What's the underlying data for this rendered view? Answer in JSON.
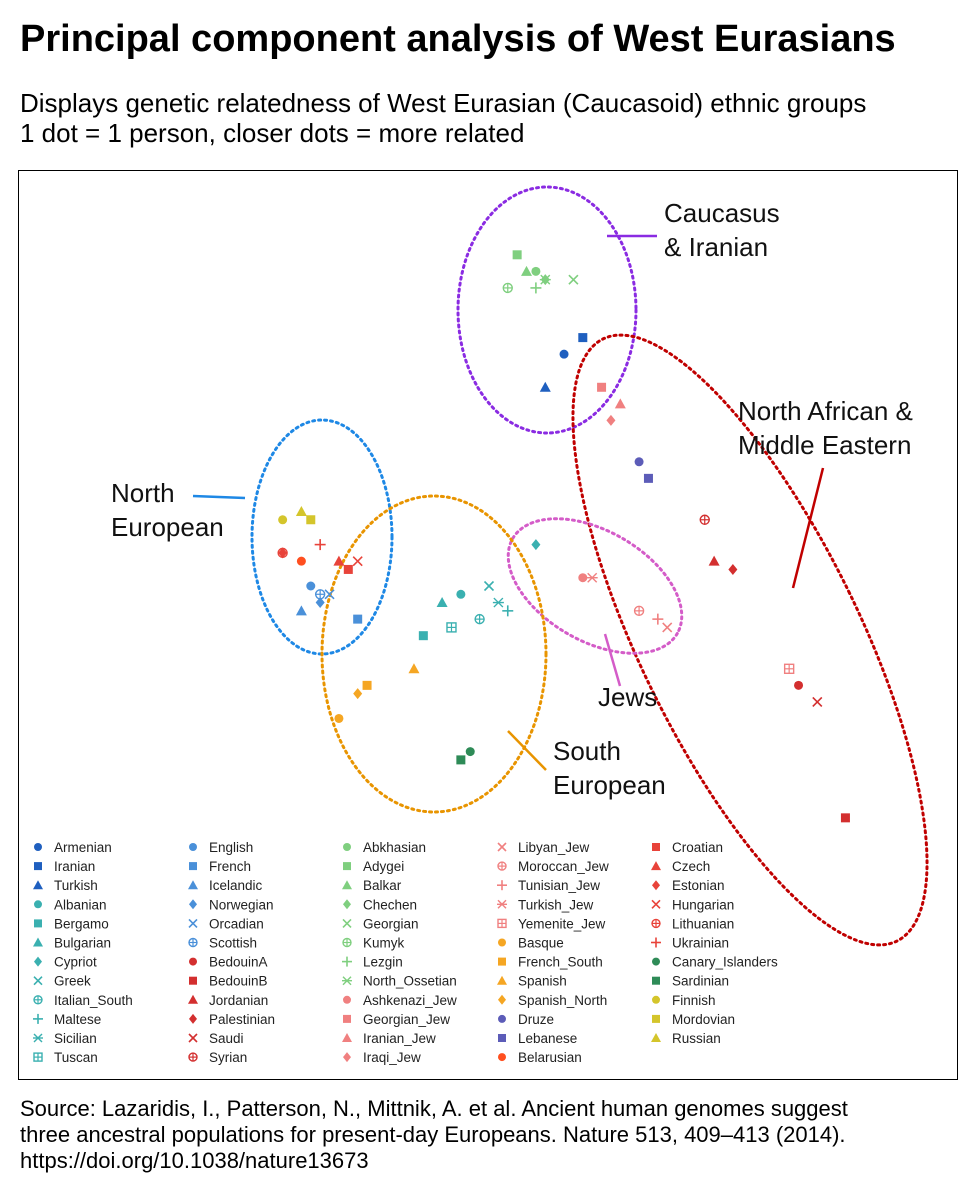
{
  "title": "Principal component analysis of West Eurasians",
  "subtitle_lines": [
    "Displays genetic relatedness of West Eurasian (Caucasoid) ethnic groups",
    "1 dot = 1 person, closer dots = more related"
  ],
  "source_lines": [
    "Source: Lazaridis, I., Patterson, N., Mittnik, A. et al. Ancient human genomes suggest",
    "three ancestral populations for present-day Europeans. Nature 513, 409–413 (2014).",
    "https://doi.org/10.1038/nature13673"
  ],
  "chart_data": {
    "type": "scatter",
    "title": "Principal component analysis of West Eurasians",
    "xlabel": "",
    "ylabel": "",
    "grid": false,
    "legend_position": "bottom",
    "cluster_annotations": [
      {
        "lines": [
          "Caucasus",
          "& Iranian"
        ],
        "color": "#8a2be2"
      },
      {
        "lines": [
          "North African &",
          "Middle Eastern"
        ],
        "color": "#c00000"
      },
      {
        "lines": [
          "North",
          "European"
        ],
        "color": "#1e88e5"
      },
      {
        "lines": [
          "Jews"
        ],
        "color": "#d45cc8"
      },
      {
        "lines": [
          "South",
          "European"
        ],
        "color": "#e89400"
      }
    ],
    "series": [
      {
        "name": "Armenian",
        "color": "#1f5fbf",
        "marker": "circle",
        "x": 0.58,
        "y": 0.78
      },
      {
        "name": "Iranian",
        "color": "#1f5fbf",
        "marker": "square",
        "x": 0.6,
        "y": 0.8
      },
      {
        "name": "Turkish",
        "color": "#1f5fbf",
        "marker": "triangle",
        "x": 0.56,
        "y": 0.74
      },
      {
        "name": "Albanian",
        "color": "#3ab0b0",
        "marker": "circle",
        "x": 0.47,
        "y": 0.49
      },
      {
        "name": "Bergamo",
        "color": "#3ab0b0",
        "marker": "square",
        "x": 0.43,
        "y": 0.44
      },
      {
        "name": "Bulgarian",
        "color": "#3ab0b0",
        "marker": "triangle",
        "x": 0.45,
        "y": 0.48
      },
      {
        "name": "Cypriot",
        "color": "#3ab0b0",
        "marker": "diamond",
        "x": 0.55,
        "y": 0.55
      },
      {
        "name": "Greek",
        "color": "#3ab0b0",
        "marker": "x",
        "x": 0.5,
        "y": 0.5
      },
      {
        "name": "Italian_South",
        "color": "#3ab0b0",
        "marker": "oplus",
        "x": 0.49,
        "y": 0.46
      },
      {
        "name": "Maltese",
        "color": "#3ab0b0",
        "marker": "plus",
        "x": 0.52,
        "y": 0.47
      },
      {
        "name": "Sicilian",
        "color": "#3ab0b0",
        "marker": "asterisk",
        "x": 0.51,
        "y": 0.48
      },
      {
        "name": "Tuscan",
        "color": "#3ab0b0",
        "marker": "boxplus",
        "x": 0.46,
        "y": 0.45
      },
      {
        "name": "English",
        "color": "#4a90d9",
        "marker": "circle",
        "x": 0.31,
        "y": 0.5
      },
      {
        "name": "French",
        "color": "#4a90d9",
        "marker": "square",
        "x": 0.36,
        "y": 0.46
      },
      {
        "name": "Icelandic",
        "color": "#4a90d9",
        "marker": "triangle",
        "x": 0.3,
        "y": 0.47
      },
      {
        "name": "Norwegian",
        "color": "#4a90d9",
        "marker": "diamond",
        "x": 0.32,
        "y": 0.48
      },
      {
        "name": "Orcadian",
        "color": "#4a90d9",
        "marker": "x",
        "x": 0.33,
        "y": 0.49
      },
      {
        "name": "Scottish",
        "color": "#4a90d9",
        "marker": "oplus",
        "x": 0.32,
        "y": 0.49
      },
      {
        "name": "BedouinA",
        "color": "#d32f2f",
        "marker": "circle",
        "x": 0.83,
        "y": 0.38
      },
      {
        "name": "BedouinB",
        "color": "#d32f2f",
        "marker": "square",
        "x": 0.88,
        "y": 0.22
      },
      {
        "name": "Jordanian",
        "color": "#d32f2f",
        "marker": "triangle",
        "x": 0.74,
        "y": 0.53
      },
      {
        "name": "Palestinian",
        "color": "#d32f2f",
        "marker": "diamond",
        "x": 0.76,
        "y": 0.52
      },
      {
        "name": "Saudi",
        "color": "#d32f2f",
        "marker": "x",
        "x": 0.85,
        "y": 0.36
      },
      {
        "name": "Syrian",
        "color": "#d32f2f",
        "marker": "oplus",
        "x": 0.73,
        "y": 0.58
      },
      {
        "name": "Abkhasian",
        "color": "#7fcf7f",
        "marker": "circle",
        "x": 0.55,
        "y": 0.88
      },
      {
        "name": "Adygei",
        "color": "#7fcf7f",
        "marker": "square",
        "x": 0.53,
        "y": 0.9
      },
      {
        "name": "Balkar",
        "color": "#7fcf7f",
        "marker": "triangle",
        "x": 0.54,
        "y": 0.88
      },
      {
        "name": "Chechen",
        "color": "#7fcf7f",
        "marker": "diamond",
        "x": 0.56,
        "y": 0.87
      },
      {
        "name": "Georgian",
        "color": "#7fcf7f",
        "marker": "x",
        "x": 0.59,
        "y": 0.87
      },
      {
        "name": "Kumyk",
        "color": "#7fcf7f",
        "marker": "oplus",
        "x": 0.52,
        "y": 0.86
      },
      {
        "name": "Lezgin",
        "color": "#7fcf7f",
        "marker": "plus",
        "x": 0.55,
        "y": 0.86
      },
      {
        "name": "North_Ossetian",
        "color": "#7fcf7f",
        "marker": "asterisk",
        "x": 0.56,
        "y": 0.87
      },
      {
        "name": "Ashkenazi_Jew",
        "color": "#f08080",
        "marker": "circle",
        "x": 0.6,
        "y": 0.51
      },
      {
        "name": "Georgian_Jew",
        "color": "#f08080",
        "marker": "square",
        "x": 0.62,
        "y": 0.74
      },
      {
        "name": "Iranian_Jew",
        "color": "#f08080",
        "marker": "triangle",
        "x": 0.64,
        "y": 0.72
      },
      {
        "name": "Iraqi_Jew",
        "color": "#f08080",
        "marker": "diamond",
        "x": 0.63,
        "y": 0.7
      },
      {
        "name": "Libyan_Jew",
        "color": "#f08080",
        "marker": "x",
        "x": 0.69,
        "y": 0.45
      },
      {
        "name": "Moroccan_Jew",
        "color": "#f08080",
        "marker": "oplus",
        "x": 0.66,
        "y": 0.47
      },
      {
        "name": "Tunisian_Jew",
        "color": "#f08080",
        "marker": "plus",
        "x": 0.68,
        "y": 0.46
      },
      {
        "name": "Turkish_Jew",
        "color": "#f08080",
        "marker": "asterisk",
        "x": 0.61,
        "y": 0.51
      },
      {
        "name": "Yemenite_Jew",
        "color": "#f08080",
        "marker": "boxplus",
        "x": 0.82,
        "y": 0.4
      },
      {
        "name": "Basque",
        "color": "#f5a623",
        "marker": "circle",
        "x": 0.34,
        "y": 0.34
      },
      {
        "name": "French_South",
        "color": "#f5a623",
        "marker": "square",
        "x": 0.37,
        "y": 0.38
      },
      {
        "name": "Spanish",
        "color": "#f5a623",
        "marker": "triangle",
        "x": 0.42,
        "y": 0.4
      },
      {
        "name": "Spanish_North",
        "color": "#f5a623",
        "marker": "diamond",
        "x": 0.36,
        "y": 0.37
      },
      {
        "name": "Druze",
        "color": "#5c5cb8",
        "marker": "circle",
        "x": 0.66,
        "y": 0.65
      },
      {
        "name": "Lebanese",
        "color": "#5c5cb8",
        "marker": "square",
        "x": 0.67,
        "y": 0.63
      },
      {
        "name": "Belarusian",
        "color": "#ff4f1f",
        "marker": "circle",
        "x": 0.3,
        "y": 0.53
      },
      {
        "name": "Croatian",
        "color": "#e8433a",
        "marker": "square",
        "x": 0.35,
        "y": 0.52
      },
      {
        "name": "Czech",
        "color": "#e8433a",
        "marker": "triangle",
        "x": 0.34,
        "y": 0.53
      },
      {
        "name": "Estonian",
        "color": "#e8433a",
        "marker": "diamond",
        "x": 0.28,
        "y": 0.54
      },
      {
        "name": "Hungarian",
        "color": "#e8433a",
        "marker": "x",
        "x": 0.36,
        "y": 0.53
      },
      {
        "name": "Lithuanian",
        "color": "#e8433a",
        "marker": "oplus",
        "x": 0.28,
        "y": 0.54
      },
      {
        "name": "Ukrainian",
        "color": "#e8433a",
        "marker": "plus",
        "x": 0.32,
        "y": 0.55
      },
      {
        "name": "Canary_Islanders",
        "color": "#2e8b57",
        "marker": "circle",
        "x": 0.48,
        "y": 0.3
      },
      {
        "name": "Sardinian",
        "color": "#2e8b57",
        "marker": "square",
        "x": 0.47,
        "y": 0.29
      },
      {
        "name": "Finnish",
        "color": "#d4c52b",
        "marker": "circle",
        "x": 0.28,
        "y": 0.58
      },
      {
        "name": "Mordovian",
        "color": "#d4c52b",
        "marker": "square",
        "x": 0.31,
        "y": 0.58
      },
      {
        "name": "Russian",
        "color": "#d4c52b",
        "marker": "triangle",
        "x": 0.3,
        "y": 0.59
      }
    ]
  }
}
